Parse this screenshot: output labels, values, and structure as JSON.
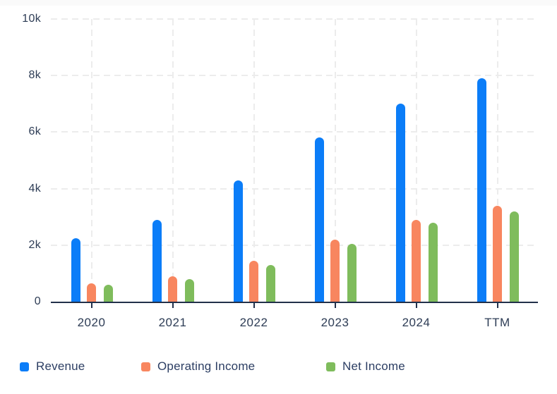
{
  "chart_data": {
    "type": "bar",
    "title": "",
    "categories": [
      "2020",
      "2021",
      "2022",
      "2023",
      "2024",
      "TTM"
    ],
    "series": [
      {
        "name": "Revenue",
        "color": "#0b7df8",
        "values": [
          2250,
          2900,
          4300,
          5800,
          7000,
          7900
        ]
      },
      {
        "name": "Operating Income",
        "color": "#f8865f",
        "values": [
          650,
          900,
          1450,
          2200,
          2900,
          3400
        ]
      },
      {
        "name": "Net Income",
        "color": "#7fbc5c",
        "values": [
          600,
          800,
          1300,
          2050,
          2800,
          3200
        ]
      }
    ],
    "xlabel": "",
    "ylabel": "",
    "ylim": [
      0,
      10000
    ],
    "y_ticks": [
      {
        "value": 0,
        "label": "0"
      },
      {
        "value": 2000,
        "label": "2k"
      },
      {
        "value": 4000,
        "label": "4k"
      },
      {
        "value": 6000,
        "label": "6k"
      },
      {
        "value": 8000,
        "label": "8k"
      },
      {
        "value": 10000,
        "label": "10k"
      }
    ],
    "grid": "dashed",
    "legend_position": "bottom"
  },
  "colors": {
    "axis": "#22304a",
    "grid": "#ececec",
    "tick_text": "#2d3c55",
    "legend_text": "#2c3e63",
    "background": "#ffffff"
  }
}
